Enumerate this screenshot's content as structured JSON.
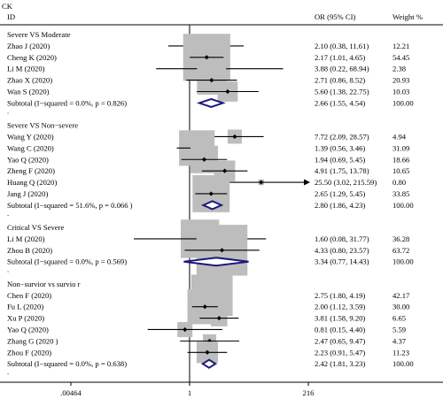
{
  "header": {
    "title": "CK",
    "id_label": "ID",
    "or_label": "OR (95% CI)",
    "weight_label": "Weight %"
  },
  "chart_data": {
    "type": "forest",
    "x_scale": "log",
    "xlim": [
      0.00464,
      216
    ],
    "null_line": 1,
    "ticks": [
      {
        "value": 0.00464,
        "label": ".00464"
      },
      {
        "value": 1,
        "label": "1"
      },
      {
        "value": 216,
        "label": "216"
      }
    ],
    "groups": [
      {
        "title": "Severe VS Moderate",
        "studies": [
          {
            "label": "Zhao J  (2020)",
            "or": 2.1,
            "lo": 0.38,
            "hi": 11.61,
            "text": "2.10 (0.38, 11.61)",
            "weight": "12.21"
          },
          {
            "label": "Cheng K  (2020)",
            "or": 2.17,
            "lo": 1.01,
            "hi": 4.65,
            "text": "2.17 (1.01, 4.65)",
            "weight": "54.45"
          },
          {
            "label": "Li M  (2020)",
            "or": 3.88,
            "lo": 0.22,
            "hi": 68.94,
            "text": "3.88 (0.22, 68.94)",
            "weight": "2.38"
          },
          {
            "label": "Zhao X  (2020)",
            "or": 2.71,
            "lo": 0.86,
            "hi": 8.52,
            "text": "2.71 (0.86, 8.52)",
            "weight": "20.93"
          },
          {
            "label": "Wan S  (2020)",
            "or": 5.6,
            "lo": 1.38,
            "hi": 22.75,
            "text": "5.60 (1.38, 22.75)",
            "weight": "10.03"
          }
        ],
        "subtotal": {
          "label": "Subtotal  (I−squared = 0.0%, p = 0.826)",
          "or": 2.66,
          "lo": 1.55,
          "hi": 4.54,
          "text": "2.66 (1.55, 4.54)",
          "weight": "100.00"
        }
      },
      {
        "title": "Severe VS Non−severe",
        "studies": [
          {
            "label": "Wang Y  (2020)",
            "or": 7.72,
            "lo": 2.09,
            "hi": 28.57,
            "text": "7.72 (2.09, 28.57)",
            "weight": "4.94"
          },
          {
            "label": "Wang C  (2020)",
            "or": 1.39,
            "lo": 0.56,
            "hi": 3.46,
            "text": "1.39 (0.56, 3.46)",
            "weight": "31.09"
          },
          {
            "label": "Yao Q  (2020)",
            "or": 1.94,
            "lo": 0.69,
            "hi": 5.45,
            "text": "1.94 (0.69, 5.45)",
            "weight": "18.66"
          },
          {
            "label": "Zheng F  (2020)",
            "or": 4.91,
            "lo": 1.75,
            "hi": 13.78,
            "text": "4.91 (1.75, 13.78)",
            "weight": "10.65"
          },
          {
            "label": "Huang Q  (2020)",
            "or": 25.5,
            "lo": 3.02,
            "hi": 215.59,
            "text": "25.50 (3.02, 215.59)",
            "weight": "0.80",
            "arrow": true
          },
          {
            "label": "Jang J  (2020)",
            "or": 2.65,
            "lo": 1.29,
            "hi": 5.45,
            "text": "2.65 (1.29, 5.45)",
            "weight": "33.85"
          }
        ],
        "subtotal": {
          "label": "Subtotal  (I−squared = 51.6%, p = 0.066   )",
          "or": 2.8,
          "lo": 1.86,
          "hi": 4.23,
          "text": "2.80 (1.86, 4.23)",
          "weight": "100.00"
        }
      },
      {
        "title": "Critical VS Severe",
        "studies": [
          {
            "label": "Li M  (2020)",
            "or": 1.6,
            "lo": 0.08,
            "hi": 31.77,
            "text": "1.60 (0.08, 31.77)",
            "weight": "36.28"
          },
          {
            "label": "Zhou B  (2020)",
            "or": 4.33,
            "lo": 0.8,
            "hi": 23.57,
            "text": "4.33 (0.80, 23.57)",
            "weight": "63.72"
          }
        ],
        "subtotal": {
          "label": "Subtotal  (I−squared = 0.0%, p = 0.569)",
          "or": 3.34,
          "lo": 0.77,
          "hi": 14.43,
          "text": "3.34 (0.77, 14.43)",
          "weight": "100.00"
        }
      },
      {
        "title": "Non−survior vs survio  r",
        "studies": [
          {
            "label": "Chen F  (2020)",
            "or": 2.75,
            "lo": 1.8,
            "hi": 4.19,
            "text": "2.75 (1.80, 4.19)",
            "weight": "42.17"
          },
          {
            "label": "Fu L  (2020)",
            "or": 2.0,
            "lo": 1.12,
            "hi": 3.59,
            "text": "2.00 (1.12, 3.59)",
            "weight": "30.00"
          },
          {
            "label": "Xu P  (2020)",
            "or": 3.81,
            "lo": 1.58,
            "hi": 9.2,
            "text": "3.81 (1.58, 9.20)",
            "weight": "6.65"
          },
          {
            "label": "Yao Q  (2020)",
            "or": 0.81,
            "lo": 0.15,
            "hi": 4.4,
            "text": "0.81 (0.15, 4.40)",
            "weight": "5.59"
          },
          {
            "label": "Zhang G  (2020 )",
            "or": 2.47,
            "lo": 0.65,
            "hi": 9.47,
            "text": "2.47 (0.65, 9.47)",
            "weight": "4.37"
          },
          {
            "label": "Zhou F  (2020)",
            "or": 2.23,
            "lo": 0.91,
            "hi": 5.47,
            "text": "2.23 (0.91, 5.47)",
            "weight": "11.23"
          }
        ],
        "subtotal": {
          "label": "Subtotal  (I−squared = 0.0%, p = 0.638)",
          "or": 2.42,
          "lo": 1.81,
          "hi": 3.23,
          "text": "2.42 (1.81, 3.23)",
          "weight": "100.00"
        }
      }
    ],
    "colors": {
      "weight_box": "#bdbdbd",
      "diamond": "#1a1a7a",
      "line": "#000000"
    }
  }
}
